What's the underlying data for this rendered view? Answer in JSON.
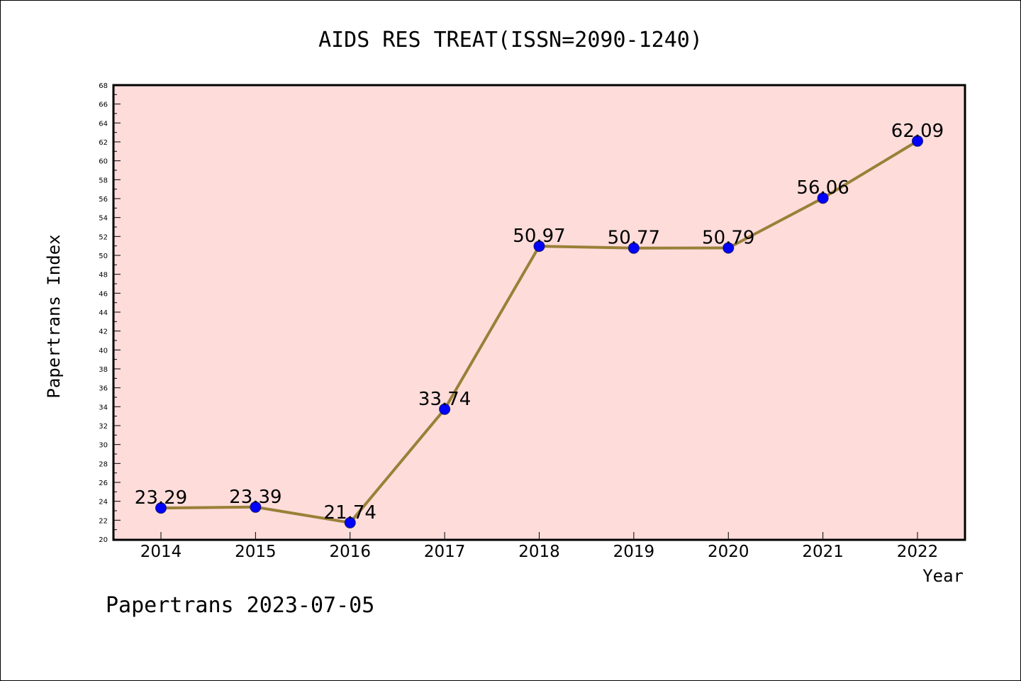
{
  "chart_data": {
    "type": "line",
    "title": "AIDS RES TREAT(ISSN=2090-1240)",
    "xlabel": "Year",
    "ylabel": "Papertrans Index",
    "footer": "Papertrans 2023-07-05",
    "categories": [
      "2014",
      "2015",
      "2016",
      "2017",
      "2018",
      "2019",
      "2020",
      "2021",
      "2022"
    ],
    "series": [
      {
        "values": [
          23.29,
          23.39,
          21.74,
          33.74,
          50.97,
          50.77,
          50.79,
          56.06,
          62.09
        ]
      }
    ],
    "data_labels": [
      "23.29",
      "23.39",
      "21.74",
      "33.74",
      "50.97",
      "50.77",
      "50.79",
      "56.06",
      "62.09"
    ],
    "ylim": [
      20,
      68
    ],
    "yticks": [
      20,
      22,
      24,
      26,
      28,
      30,
      32,
      34,
      36,
      38,
      40,
      42,
      44,
      46,
      48,
      50,
      52,
      54,
      56,
      58,
      60,
      62,
      64,
      66,
      68
    ],
    "grid": false,
    "colors": {
      "plot_background": "#fddcda",
      "line": "#9a8038",
      "marker": "#0000ff"
    }
  }
}
